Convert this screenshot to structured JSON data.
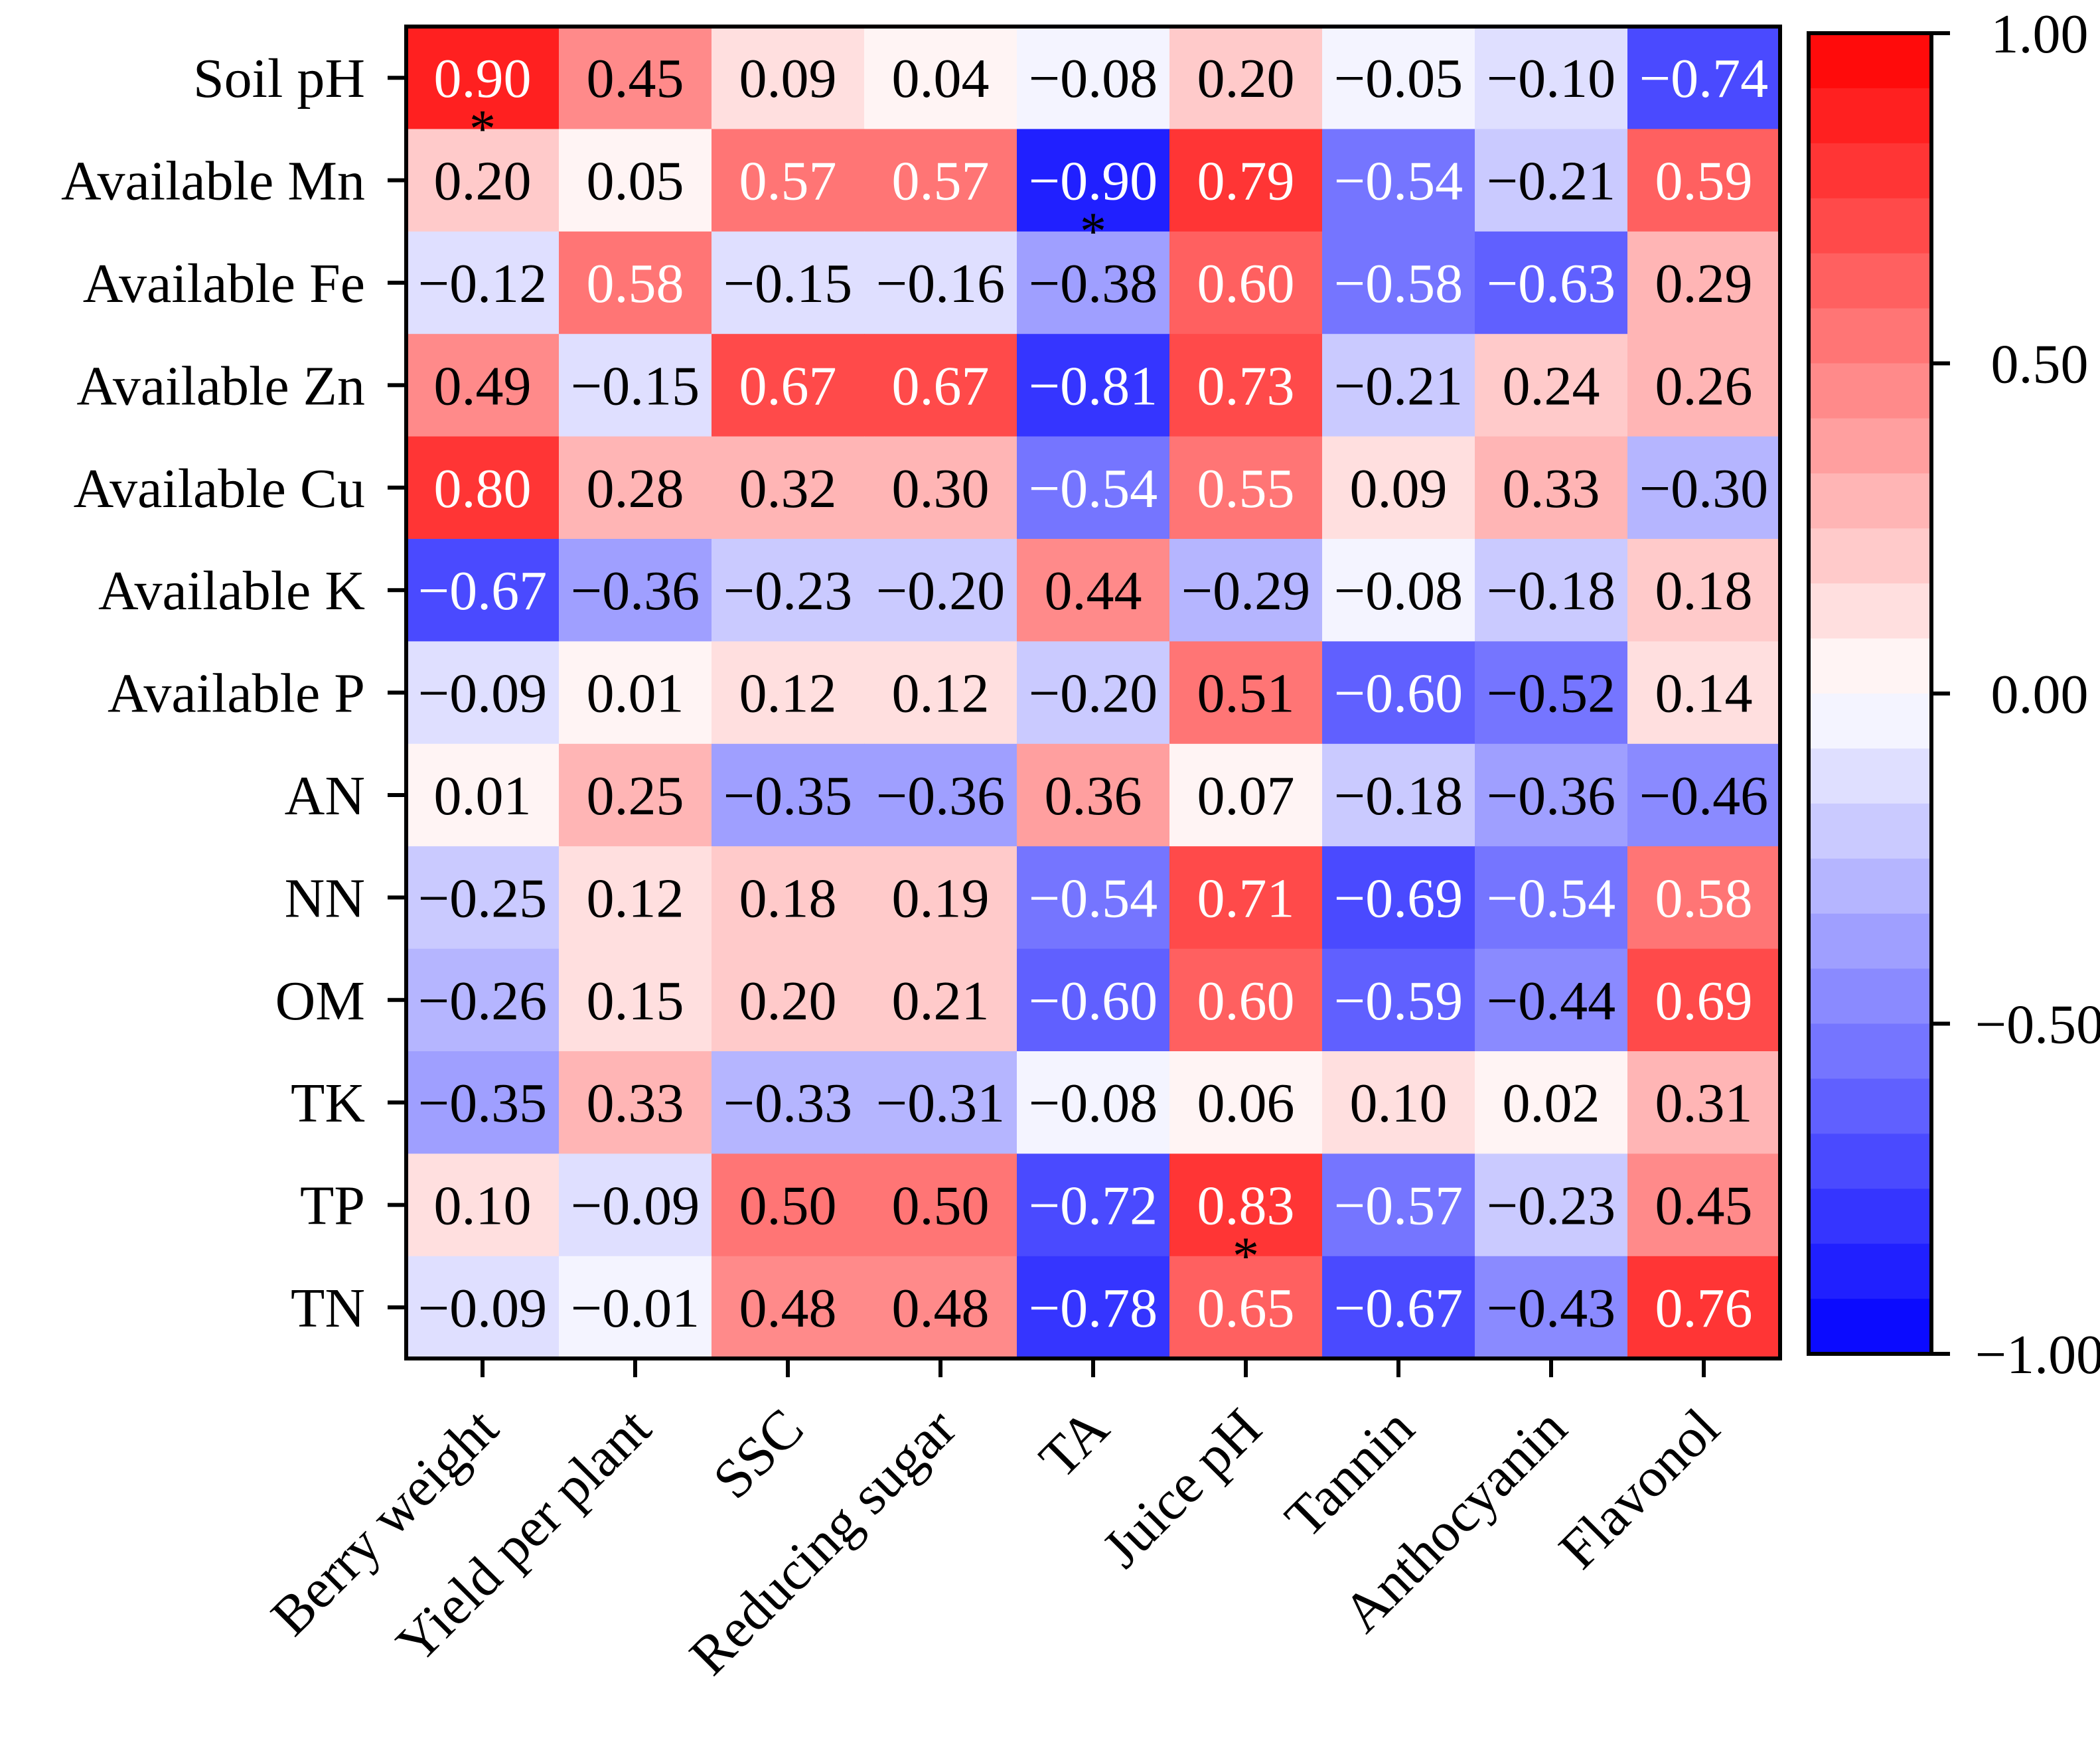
{
  "chart_data": {
    "type": "heatmap",
    "title": "",
    "xlabel": "",
    "ylabel": "",
    "rows": [
      "Soil pH",
      "Available Mn",
      "Available Fe",
      "Available Zn",
      "Available Cu",
      "Available K",
      "Available P",
      "AN",
      "NN",
      "OM",
      "TK",
      "TP",
      "TN"
    ],
    "columns": [
      "Berry weight",
      "Yield per plant",
      "SSC",
      "Reducing sugar",
      "TA",
      "Juice pH",
      "Tannin",
      "Anthocyanin",
      "Flavonol"
    ],
    "values": [
      [
        0.9,
        0.45,
        0.09,
        0.04,
        -0.08,
        0.2,
        -0.05,
        -0.1,
        -0.74
      ],
      [
        0.2,
        0.05,
        0.57,
        0.57,
        -0.9,
        0.79,
        -0.54,
        -0.21,
        0.59
      ],
      [
        -0.12,
        0.58,
        -0.15,
        -0.16,
        -0.38,
        0.6,
        -0.58,
        -0.63,
        0.29
      ],
      [
        0.49,
        -0.15,
        0.67,
        0.67,
        -0.81,
        0.73,
        -0.21,
        0.24,
        0.26
      ],
      [
        0.8,
        0.28,
        0.32,
        0.3,
        -0.54,
        0.55,
        0.09,
        0.33,
        -0.3
      ],
      [
        -0.67,
        -0.36,
        -0.23,
        -0.2,
        0.44,
        -0.29,
        -0.08,
        -0.18,
        0.18
      ],
      [
        -0.09,
        0.01,
        0.12,
        0.12,
        -0.2,
        0.51,
        -0.6,
        -0.52,
        0.14
      ],
      [
        0.01,
        0.25,
        -0.35,
        -0.36,
        0.36,
        0.07,
        -0.18,
        -0.36,
        -0.46
      ],
      [
        -0.25,
        0.12,
        0.18,
        0.19,
        -0.54,
        0.71,
        -0.69,
        -0.54,
        0.58
      ],
      [
        -0.26,
        0.15,
        0.2,
        0.21,
        -0.6,
        0.6,
        -0.59,
        -0.44,
        0.69
      ],
      [
        -0.35,
        0.33,
        -0.33,
        -0.31,
        -0.08,
        0.06,
        0.1,
        0.02,
        0.31
      ],
      [
        0.1,
        -0.09,
        0.5,
        0.5,
        -0.72,
        0.83,
        -0.57,
        -0.23,
        0.45
      ],
      [
        -0.09,
        -0.01,
        0.48,
        0.48,
        -0.78,
        0.65,
        -0.67,
        -0.43,
        0.76
      ]
    ],
    "significance": [
      {
        "row": 0,
        "col": 0,
        "mark": "*"
      },
      {
        "row": 1,
        "col": 4,
        "mark": "*"
      },
      {
        "row": 11,
        "col": 5,
        "mark": "*"
      }
    ],
    "colorbar": {
      "range": [
        -1.0,
        1.0
      ],
      "steps": 24,
      "ticks": [
        1.0,
        0.5,
        0.0,
        -0.5,
        -1.0
      ],
      "tick_labels": [
        "1.00",
        "0.50",
        "0.00",
        "−0.50",
        "−1.00"
      ],
      "color_min": "#0000ff",
      "color_mid": "#ffffff",
      "color_max": "#ff0000"
    }
  }
}
